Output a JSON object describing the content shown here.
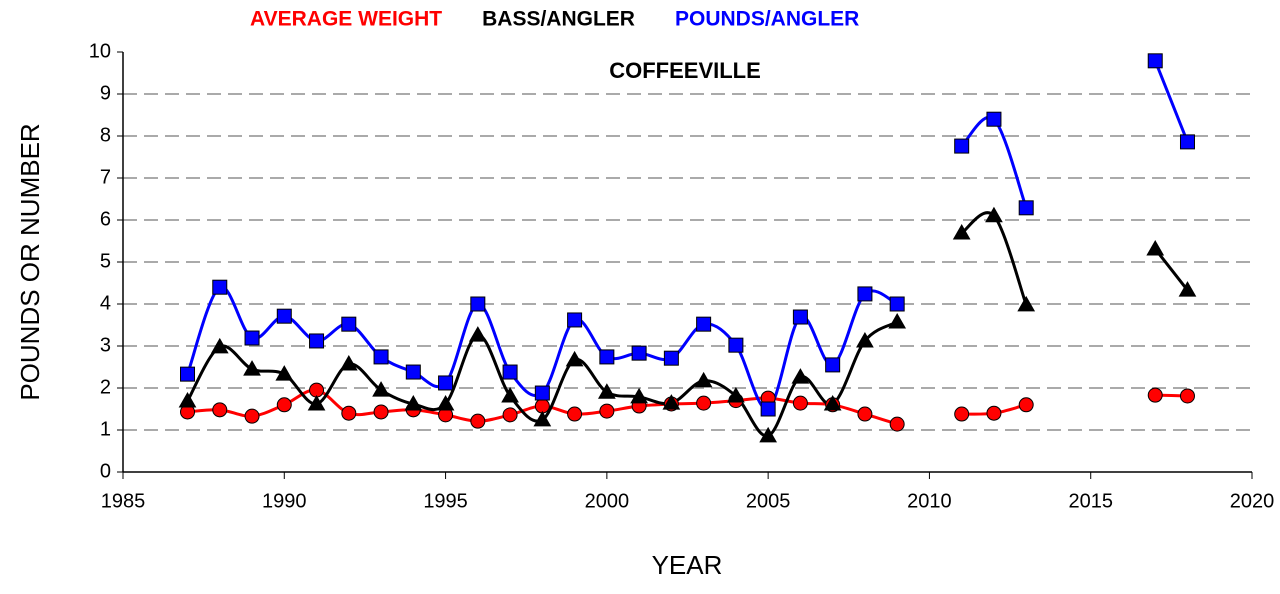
{
  "chart_data": {
    "type": "line",
    "title": "COFFEEVILLE",
    "x_label": "YEAR",
    "y_label": "POUNDS OR NUMBER",
    "x": [
      1987,
      1988,
      1989,
      1990,
      1991,
      1992,
      1993,
      1994,
      1995,
      1996,
      1997,
      1998,
      1999,
      2000,
      2001,
      2002,
      2003,
      2004,
      2005,
      2006,
      2007,
      2008,
      2009,
      2010,
      2011,
      2012,
      2013,
      2014,
      2015,
      2016,
      2017,
      2018
    ],
    "series": [
      {
        "name": "AVERAGE WEIGHT",
        "color": "#ff0000",
        "marker": "circle",
        "values": [
          1.43,
          1.48,
          1.33,
          1.6,
          1.95,
          1.4,
          1.43,
          1.48,
          1.36,
          1.21,
          1.36,
          1.57,
          1.38,
          1.45,
          1.57,
          1.62,
          1.64,
          1.7,
          1.76,
          1.64,
          1.6,
          1.38,
          1.14,
          null,
          1.38,
          1.4,
          1.6,
          null,
          null,
          null,
          1.83,
          1.81
        ]
      },
      {
        "name": "BASS/ANGLER",
        "color": "#000000",
        "marker": "triangle",
        "values": [
          1.69,
          2.98,
          2.45,
          2.33,
          1.62,
          2.57,
          1.95,
          1.62,
          1.62,
          3.26,
          1.81,
          1.24,
          2.67,
          1.9,
          1.79,
          1.64,
          2.17,
          1.81,
          0.86,
          2.26,
          1.62,
          3.12,
          3.57,
          null,
          5.69,
          6.1,
          3.98,
          null,
          null,
          null,
          5.31,
          4.33
        ]
      },
      {
        "name": "POUNDS/ANGLER",
        "color": "#0000ff",
        "marker": "square",
        "values": [
          2.33,
          4.4,
          3.19,
          3.71,
          3.12,
          3.52,
          2.74,
          2.38,
          2.12,
          4.0,
          2.38,
          1.88,
          3.62,
          2.74,
          2.83,
          2.71,
          3.52,
          3.02,
          1.5,
          3.69,
          2.55,
          4.24,
          4.0,
          null,
          7.76,
          8.4,
          6.29,
          null,
          null,
          null,
          9.79,
          7.86
        ]
      }
    ],
    "xlim": [
      1985,
      2020
    ],
    "xticks": [
      1985,
      1990,
      1995,
      2000,
      2005,
      2010,
      2015,
      2020
    ],
    "ylim": [
      0,
      10
    ],
    "yticks": [
      0,
      1,
      2,
      3,
      4,
      5,
      6,
      7,
      8,
      9,
      10
    ],
    "grid": true,
    "legend": "top"
  }
}
